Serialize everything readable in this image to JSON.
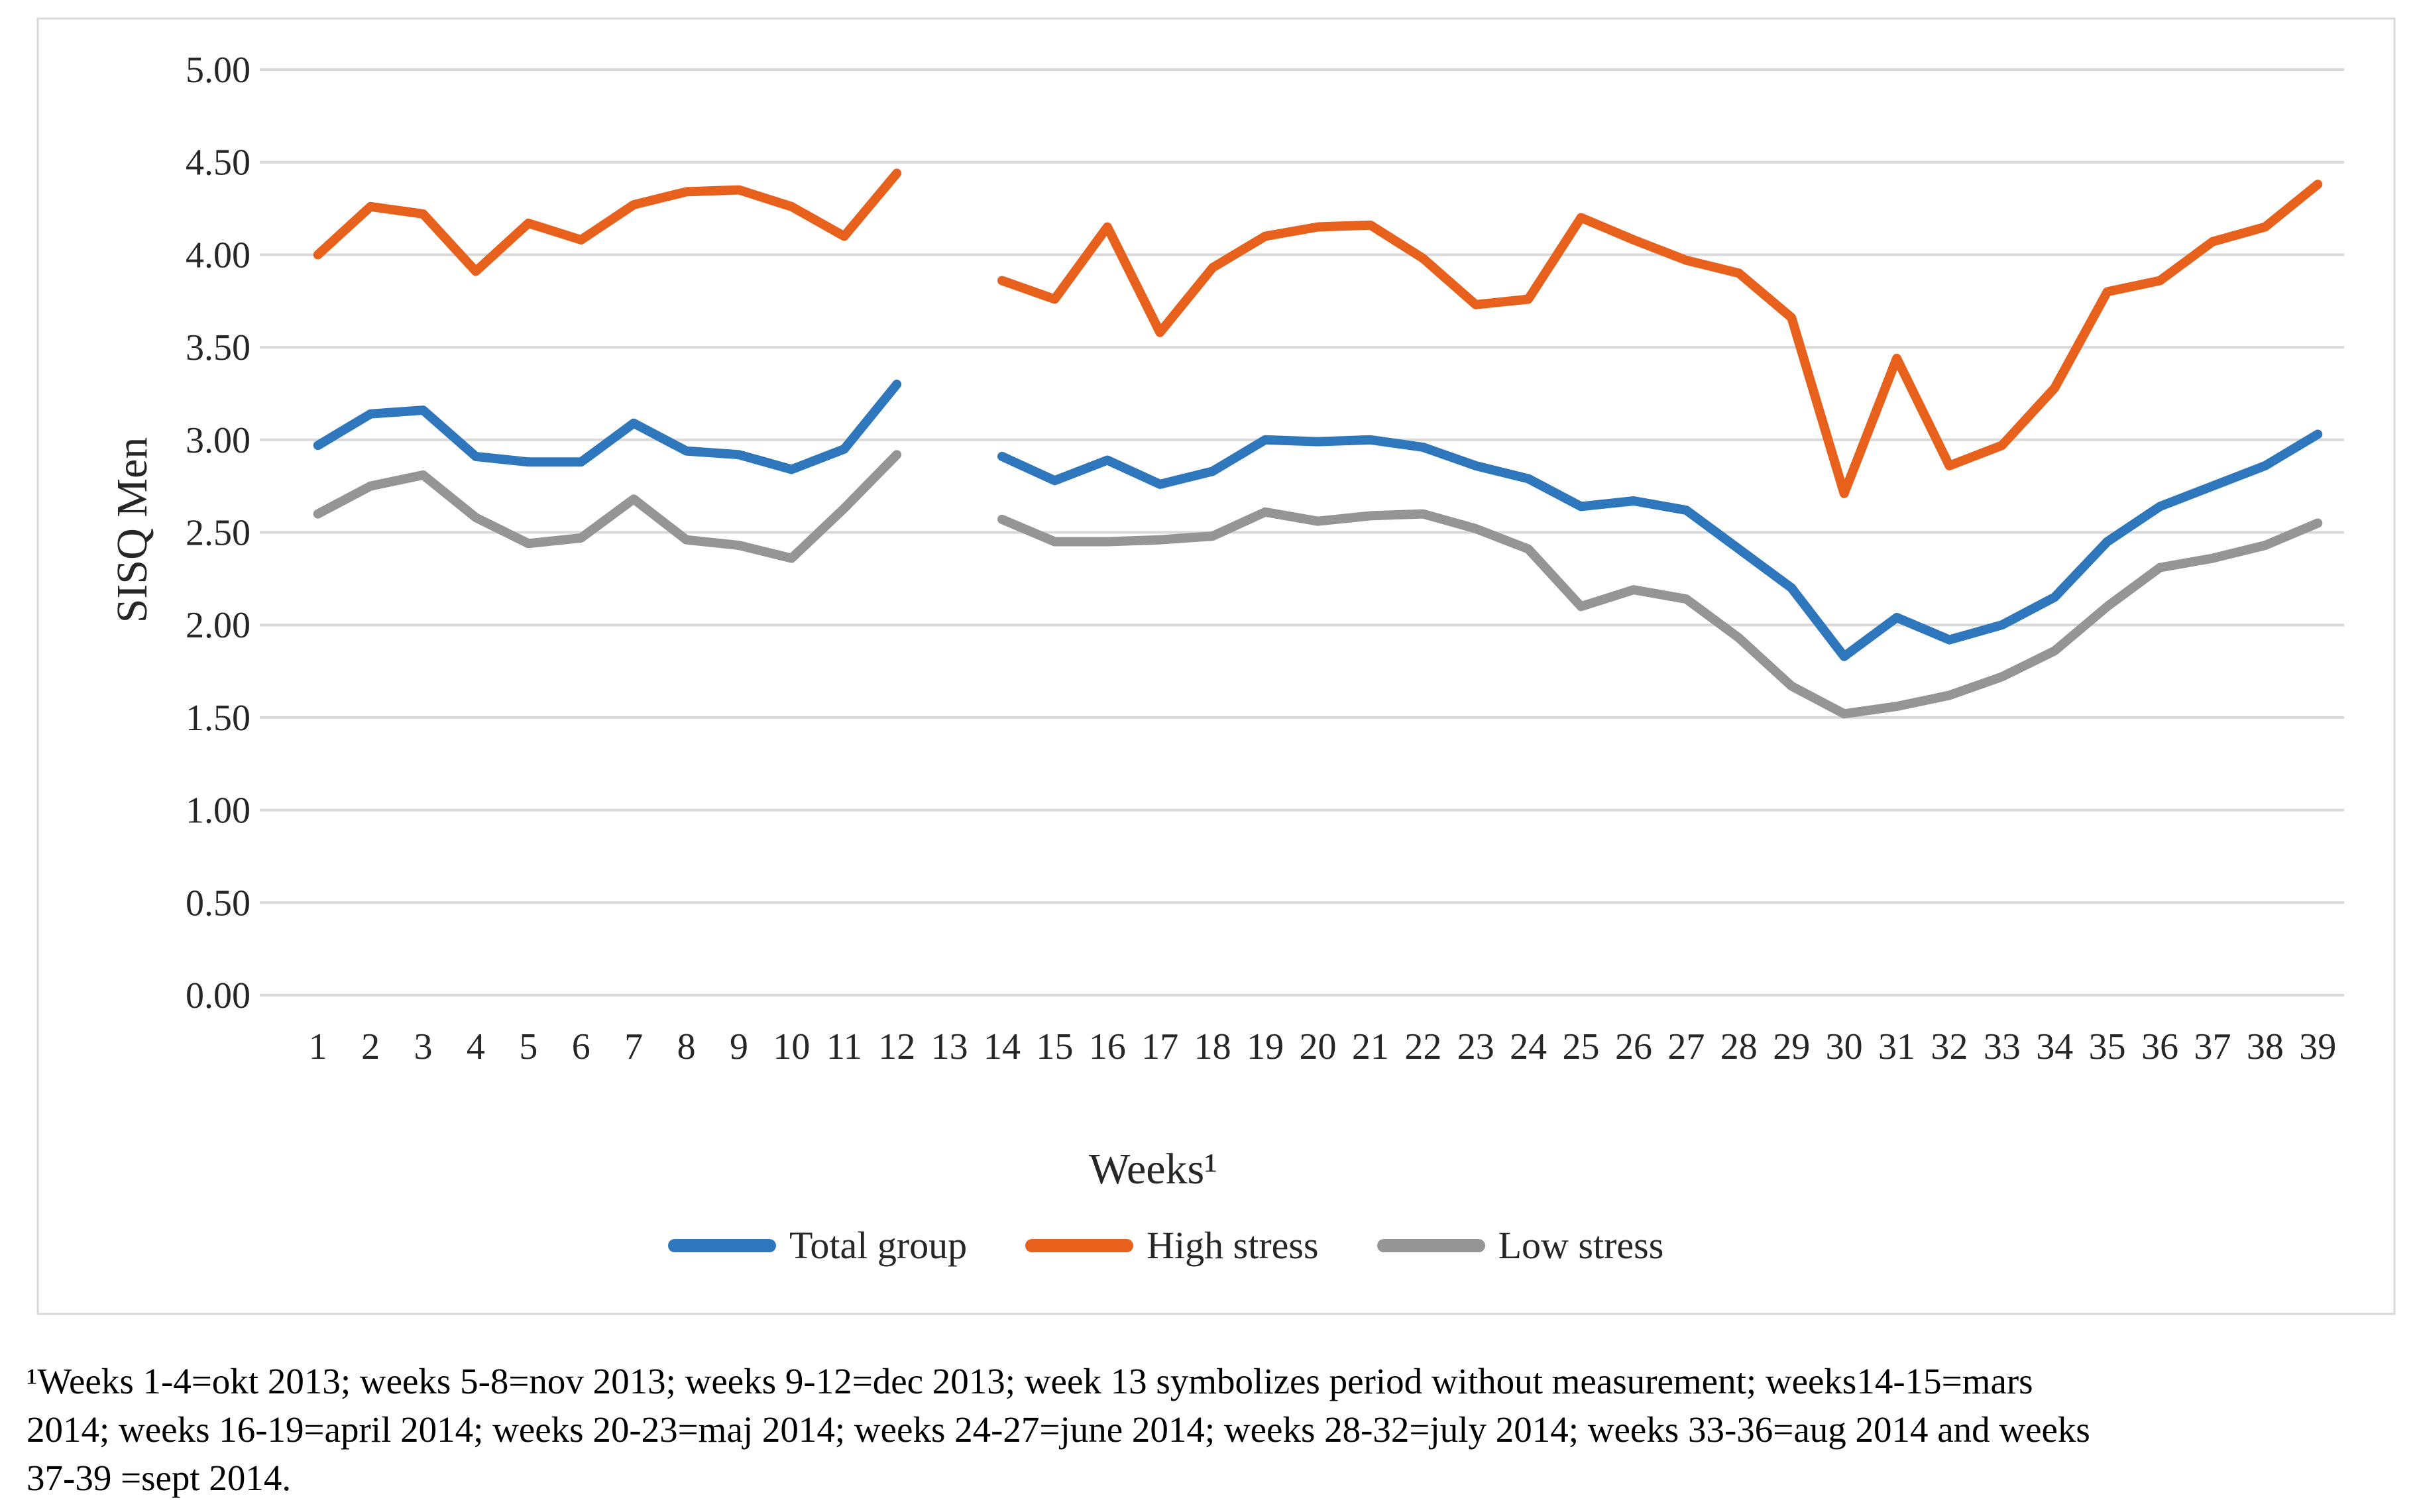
{
  "chart_data": {
    "type": "line",
    "title": "",
    "x_label": "Weeks¹",
    "y_label": "SISQ Men",
    "categories": [
      1,
      2,
      3,
      4,
      5,
      6,
      7,
      8,
      9,
      10,
      11,
      12,
      13,
      14,
      15,
      16,
      17,
      18,
      19,
      20,
      21,
      22,
      23,
      24,
      25,
      26,
      27,
      28,
      29,
      30,
      31,
      32,
      33,
      34,
      35,
      36,
      37,
      38,
      39
    ],
    "x_tick_labels": [
      "1",
      "2",
      "3",
      "4",
      "5",
      "6",
      "7",
      "8",
      "9",
      "10",
      "11",
      "12",
      "13",
      "14",
      "15",
      "16",
      "17",
      "18",
      "19",
      "20",
      "21",
      "22",
      "23",
      "24",
      "25",
      "26",
      "27",
      "28",
      "29",
      "30",
      "31",
      "32",
      "33",
      "34",
      "35",
      "36",
      "37",
      "38",
      "39"
    ],
    "y_tick_labels": [
      "5.00",
      "4.50",
      "4.00",
      "3.50",
      "3.00",
      "2.50",
      "2.00",
      "1.50",
      "1.00",
      "0.50",
      "0.00"
    ],
    "ylim": [
      0,
      5
    ],
    "ytick_step": 0.5,
    "grid": "horizontal",
    "legend_position": "bottom",
    "gap_note": "week 13 symbolizes period without measurement (no data plotted)",
    "series": [
      {
        "name": "Total group",
        "color": "#2E77BC",
        "values": [
          2.97,
          3.14,
          3.16,
          2.91,
          2.88,
          2.88,
          3.09,
          2.94,
          2.92,
          2.84,
          2.95,
          3.3,
          null,
          2.91,
          2.78,
          2.89,
          2.76,
          2.83,
          3.0,
          2.99,
          3.0,
          2.96,
          2.86,
          2.79,
          2.64,
          2.67,
          2.62,
          2.41,
          2.2,
          1.83,
          2.04,
          1.92,
          2.0,
          2.15,
          2.45,
          2.64,
          2.75,
          2.86,
          3.03
        ]
      },
      {
        "name": "High stress",
        "color": "#E8611C",
        "values": [
          4.0,
          4.26,
          4.22,
          3.91,
          4.17,
          4.08,
          4.27,
          4.34,
          4.35,
          4.26,
          4.1,
          4.44,
          null,
          3.86,
          3.76,
          4.15,
          3.58,
          3.93,
          4.1,
          4.15,
          4.16,
          3.98,
          3.73,
          3.76,
          4.2,
          4.08,
          3.97,
          3.9,
          3.66,
          2.71,
          3.44,
          2.86,
          2.97,
          3.28,
          3.8,
          3.86,
          4.07,
          4.15,
          4.38
        ]
      },
      {
        "name": "Low stress",
        "color": "#959595",
        "values": [
          2.6,
          2.75,
          2.81,
          2.58,
          2.44,
          2.47,
          2.68,
          2.46,
          2.43,
          2.36,
          2.63,
          2.92,
          null,
          2.57,
          2.45,
          2.45,
          2.46,
          2.48,
          2.61,
          2.56,
          2.59,
          2.6,
          2.52,
          2.41,
          2.1,
          2.19,
          2.14,
          1.93,
          1.67,
          1.52,
          1.56,
          1.62,
          1.72,
          1.86,
          2.1,
          2.31,
          2.36,
          2.43,
          2.55
        ]
      }
    ]
  },
  "footnote": {
    "lines": [
      "¹Weeks 1-4=okt 2013; weeks 5-8=nov 2013; weeks 9-12=dec 2013; week 13 symbolizes period without measurement; weeks14-15=mars",
      "2014; weeks 16-19=april 2014; weeks 20-23=maj 2014; weeks 24-27=june 2014; weeks 28-32=july 2014; weeks 33-36=aug 2014 and weeks",
      "37-39 =sept 2014."
    ]
  },
  "colors": {
    "grid": "#D9D9D9",
    "chart_border": "#D9D9D9",
    "tick_text": "#262626",
    "footnote_text": "#000000",
    "background": "#FFFFFF"
  }
}
